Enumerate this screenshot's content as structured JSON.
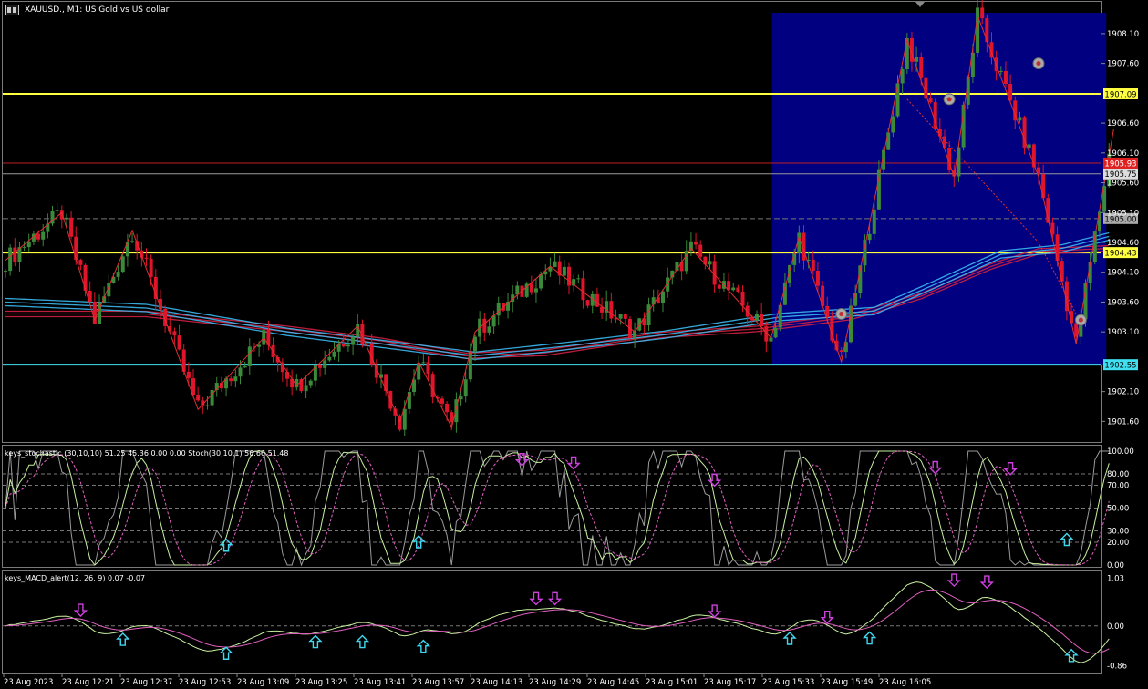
{
  "window": {
    "title": "XAUUSD., M1:  US Gold vs US dollar"
  },
  "indicators": {
    "stochastic_label": "keys_stochastic (30,10,10) 51.25 45.36 0.00 0.00 Stoch(30,10,1) 56.66 51.48",
    "macd_label": "keys_MACD_alert(12, 26, 9) 0.07 -0.07"
  },
  "colors": {
    "background": "#000000",
    "highlight_zone": "#000080",
    "bull_candle": "#3a8a3a",
    "bear_candle": "#e0142a",
    "ema_red": "#d02040",
    "ema_cyan": "#3ab8f0",
    "yellow_level": "#ffff40",
    "cyan_level": "#40e0f0",
    "zigzag": "#e03030",
    "arrow_up": "#40d8f0",
    "arrow_down": "#d040e0"
  },
  "chart_data": {
    "type": "candlestick",
    "symbol": "XAUUSD.",
    "timeframe": "M1",
    "ylim": [
      1901.3,
      1908.45
    ],
    "y_ticks": [
      "1908.10",
      "1907.60",
      "1906.60",
      "1906.10",
      "1905.60",
      "1905.10",
      "1904.60",
      "1904.10",
      "1903.60",
      "1903.10",
      "1902.10",
      "1901.60"
    ],
    "x_ticks": [
      "23 Aug 2023",
      "23 Aug 12:21",
      "23 Aug 12:37",
      "23 Aug 12:53",
      "23 Aug 13:09",
      "23 Aug 13:25",
      "23 Aug 13:41",
      "23 Aug 13:57",
      "23 Aug 14:13",
      "23 Aug 14:29",
      "23 Aug 14:45",
      "23 Aug 15:01",
      "23 Aug 15:17",
      "23 Aug 15:33",
      "23 Aug 15:49",
      "23 Aug 16:05"
    ],
    "levels": [
      {
        "value": 1907.09,
        "label": "1907.09",
        "kind": "yellow"
      },
      {
        "value": 1904.43,
        "label": "1904.43",
        "kind": "yellow"
      },
      {
        "value": 1902.55,
        "label": "1902.55",
        "kind": "cyan"
      },
      {
        "value": 1905.0,
        "label": "1905.00",
        "kind": "dashed"
      },
      {
        "value": 1905.75,
        "label": "1905.75",
        "kind": "grey"
      },
      {
        "value": 1905.93,
        "label": "1905.93",
        "kind": "red"
      }
    ],
    "highlight_zone": {
      "from_bar": 164,
      "to_bar": 235,
      "y_from": 1902.55,
      "y_to": 1908.45
    },
    "zigzag": [
      [
        0,
        1904.3
      ],
      [
        12,
        1905.1
      ],
      [
        19,
        1903.3
      ],
      [
        27,
        1904.8
      ],
      [
        41,
        1901.8
      ],
      [
        55,
        1903.0
      ],
      [
        62,
        1902.2
      ],
      [
        75,
        1903.2
      ],
      [
        84,
        1901.6
      ],
      [
        88,
        1902.6
      ],
      [
        95,
        1901.5
      ],
      [
        100,
        1903.1
      ],
      [
        116,
        1904.2
      ],
      [
        134,
        1903.1
      ],
      [
        146,
        1904.5
      ],
      [
        163,
        1903.0
      ],
      [
        169,
        1904.7
      ],
      [
        178,
        1902.6
      ],
      [
        192,
        1908.0
      ],
      [
        202,
        1905.7
      ],
      [
        207,
        1908.4
      ],
      [
        220,
        1905.7
      ],
      [
        228,
        1902.9
      ],
      [
        236,
        1906.5
      ]
    ],
    "zigzag_dotted": [
      [
        192,
        1907.0
      ],
      [
        220,
        1904.6
      ],
      [
        228,
        1903.4
      ],
      [
        170,
        1903.4
      ]
    ],
    "ema_red_points": [
      [
        0,
        1903.4
      ],
      [
        30,
        1903.4
      ],
      [
        60,
        1903.15
      ],
      [
        80,
        1902.95
      ],
      [
        98,
        1902.7
      ],
      [
        115,
        1902.75
      ],
      [
        140,
        1903.05
      ],
      [
        160,
        1903.15
      ],
      [
        180,
        1903.35
      ],
      [
        195,
        1903.7
      ],
      [
        210,
        1904.2
      ],
      [
        220,
        1904.45
      ],
      [
        235,
        1904.5
      ]
    ],
    "ema_cyan_points": [
      [
        0,
        1903.6
      ],
      [
        30,
        1903.5
      ],
      [
        60,
        1903.1
      ],
      [
        80,
        1902.9
      ],
      [
        100,
        1902.7
      ],
      [
        118,
        1902.85
      ],
      [
        140,
        1903.05
      ],
      [
        165,
        1903.35
      ],
      [
        185,
        1903.45
      ],
      [
        198,
        1903.9
      ],
      [
        212,
        1904.4
      ],
      [
        225,
        1904.5
      ],
      [
        235,
        1904.7
      ]
    ],
    "stochastic": {
      "ylim": [
        0,
        100
      ],
      "y_ticks": [
        "100.00",
        "80.00",
        "70.00",
        "50.00",
        "30.00",
        "20.00",
        "0.00"
      ],
      "levels": [
        80,
        70,
        50,
        30,
        20
      ],
      "signals_up": [
        [
          47,
          17
        ],
        [
          88,
          20
        ],
        [
          226,
          22
        ]
      ],
      "signals_down": [
        [
          110,
          93
        ],
        [
          121,
          90
        ],
        [
          151,
          75
        ],
        [
          198,
          86
        ],
        [
          214,
          85
        ]
      ]
    },
    "macd": {
      "ylim": [
        -0.95,
        1.08
      ],
      "y_ticks": [
        "1.03",
        "0.00",
        "-0.86"
      ],
      "signals_up": [
        [
          25,
          -0.3
        ],
        [
          47,
          -0.6
        ],
        [
          66,
          -0.35
        ],
        [
          76,
          -0.35
        ],
        [
          89,
          -0.45
        ],
        [
          167,
          -0.28
        ],
        [
          184,
          -0.27
        ],
        [
          227,
          -0.65
        ]
      ],
      "signals_down": [
        [
          16,
          0.35
        ],
        [
          113,
          0.6
        ],
        [
          117,
          0.6
        ],
        [
          151,
          0.33
        ],
        [
          175,
          0.2
        ],
        [
          202,
          1.0
        ],
        [
          209,
          0.96
        ]
      ]
    }
  }
}
